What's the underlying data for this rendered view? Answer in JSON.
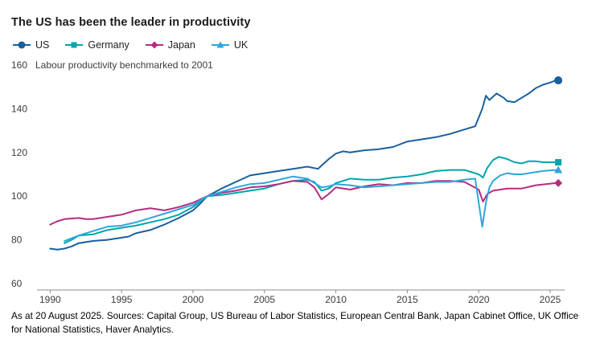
{
  "footer": {
    "note": "As at 20 August 2025. Sources: Capital Group, US Bureau of Labor Statistics, European Central Bank, Japan Cabinet Office, UK Office for National Statistics, Haver Analytics."
  },
  "chart_data": {
    "type": "line",
    "title": "The US has been the leader in productivity",
    "subtitle": "Labour productivity benchmarked to 2001",
    "legend_position": "top",
    "grid": false,
    "axis_color": "#8c8c8c",
    "tick_text_color": "#3c3c3c",
    "x_axis": {
      "min": 1989.7,
      "max": 2025.9,
      "ticks": [
        1990,
        1995,
        2000,
        2005,
        2010,
        2015,
        2020,
        2025
      ]
    },
    "y_axis": {
      "min": 60,
      "max": 160,
      "ticks": [
        60,
        80,
        100,
        120,
        140,
        160
      ]
    },
    "series": [
      {
        "name": "US",
        "color": "#1a5f9e",
        "marker": "circle",
        "points": [
          [
            1990,
            76
          ],
          [
            1990.5,
            75.5
          ],
          [
            1991,
            76
          ],
          [
            1991.5,
            77
          ],
          [
            1992,
            78.5
          ],
          [
            1993,
            79.5
          ],
          [
            1994,
            80
          ],
          [
            1995,
            81
          ],
          [
            1995.5,
            81.5
          ],
          [
            1996,
            83
          ],
          [
            1997,
            84.5
          ],
          [
            1998,
            87
          ],
          [
            1999,
            90
          ],
          [
            2000,
            93.5
          ],
          [
            2000.5,
            96.5
          ],
          [
            2001,
            100
          ],
          [
            2002,
            103.5
          ],
          [
            2003,
            106.5
          ],
          [
            2004,
            109.5
          ],
          [
            2005,
            110.5
          ],
          [
            2006,
            111.5
          ],
          [
            2007,
            112.5
          ],
          [
            2008,
            113.5
          ],
          [
            2008.75,
            112.5
          ],
          [
            2009,
            114
          ],
          [
            2009.5,
            117
          ],
          [
            2010,
            119.5
          ],
          [
            2010.5,
            120.5
          ],
          [
            2011,
            120
          ],
          [
            2012,
            121
          ],
          [
            2013,
            121.5
          ],
          [
            2014,
            122.5
          ],
          [
            2015,
            125
          ],
          [
            2016,
            126
          ],
          [
            2017,
            127
          ],
          [
            2018,
            128.5
          ],
          [
            2019,
            130.5
          ],
          [
            2019.75,
            132
          ],
          [
            2020.25,
            140
          ],
          [
            2020.5,
            146
          ],
          [
            2020.75,
            144
          ],
          [
            2021,
            145.5
          ],
          [
            2021.25,
            147
          ],
          [
            2021.75,
            145
          ],
          [
            2022,
            143.5
          ],
          [
            2022.5,
            143
          ],
          [
            2023,
            145
          ],
          [
            2023.5,
            147
          ],
          [
            2024,
            149.5
          ],
          [
            2024.5,
            151
          ],
          [
            2025,
            152
          ],
          [
            2025.4,
            153
          ]
        ]
      },
      {
        "name": "Germany",
        "color": "#00a5ad",
        "marker": "square",
        "points": [
          [
            1991,
            78.5
          ],
          [
            1991.5,
            80
          ],
          [
            1992,
            82
          ],
          [
            1993,
            82.5
          ],
          [
            1994,
            84.5
          ],
          [
            1995,
            85.5
          ],
          [
            1996,
            86.5
          ],
          [
            1997,
            88
          ],
          [
            1998,
            89.5
          ],
          [
            1999,
            91.5
          ],
          [
            2000,
            95
          ],
          [
            2001,
            100
          ],
          [
            2002,
            100.5
          ],
          [
            2003,
            101.5
          ],
          [
            2004,
            102.5
          ],
          [
            2005,
            103.5
          ],
          [
            2006,
            105.5
          ],
          [
            2007,
            107
          ],
          [
            2008,
            107.5
          ],
          [
            2008.5,
            106.5
          ],
          [
            2009,
            102.5
          ],
          [
            2009.5,
            103.5
          ],
          [
            2010,
            106
          ],
          [
            2011,
            108
          ],
          [
            2012,
            107.5
          ],
          [
            2013,
            107.5
          ],
          [
            2014,
            108.5
          ],
          [
            2015,
            109
          ],
          [
            2016,
            110
          ],
          [
            2017,
            111.5
          ],
          [
            2018,
            112
          ],
          [
            2019,
            112
          ],
          [
            2020,
            110
          ],
          [
            2020.3,
            108.5
          ],
          [
            2020.6,
            113
          ],
          [
            2021,
            116.5
          ],
          [
            2021.4,
            118
          ],
          [
            2022,
            117
          ],
          [
            2022.5,
            115.5
          ],
          [
            2023,
            115
          ],
          [
            2023.5,
            116
          ],
          [
            2024,
            116
          ],
          [
            2024.5,
            115.5
          ],
          [
            2025.4,
            115.5
          ]
        ]
      },
      {
        "name": "Japan",
        "color": "#b62c7f",
        "marker": "diamond",
        "points": [
          [
            1990,
            87
          ],
          [
            1990.5,
            88.5
          ],
          [
            1991,
            89.5
          ],
          [
            1992,
            90
          ],
          [
            1992.5,
            89.5
          ],
          [
            1993,
            89.5
          ],
          [
            1994,
            90.5
          ],
          [
            1995,
            91.5
          ],
          [
            1996,
            93.5
          ],
          [
            1997,
            94.5
          ],
          [
            1997.5,
            94
          ],
          [
            1998,
            93.5
          ],
          [
            1999,
            95
          ],
          [
            2000,
            97
          ],
          [
            2001,
            100
          ],
          [
            2002,
            101.5
          ],
          [
            2003,
            102.5
          ],
          [
            2004,
            104
          ],
          [
            2005,
            104.5
          ],
          [
            2006,
            105.5
          ],
          [
            2007,
            107
          ],
          [
            2008,
            106.5
          ],
          [
            2008.5,
            104
          ],
          [
            2009,
            98.5
          ],
          [
            2009.5,
            101
          ],
          [
            2010,
            104
          ],
          [
            2011,
            103
          ],
          [
            2012,
            104.5
          ],
          [
            2013,
            105.5
          ],
          [
            2014,
            105
          ],
          [
            2015,
            106
          ],
          [
            2016,
            106
          ],
          [
            2017,
            107
          ],
          [
            2018,
            107
          ],
          [
            2019,
            106.5
          ],
          [
            2020,
            103
          ],
          [
            2020.3,
            97.5
          ],
          [
            2020.6,
            101
          ],
          [
            2021,
            102.5
          ],
          [
            2022,
            103.5
          ],
          [
            2023,
            103.5
          ],
          [
            2024,
            105
          ],
          [
            2025.4,
            106
          ]
        ]
      },
      {
        "name": "UK",
        "color": "#2ea6dd",
        "marker": "triangle",
        "points": [
          [
            1991,
            79.5
          ],
          [
            1992,
            82
          ],
          [
            1993,
            84
          ],
          [
            1994,
            86
          ],
          [
            1995,
            86.5
          ],
          [
            1996,
            88
          ],
          [
            1997,
            90
          ],
          [
            1998,
            92
          ],
          [
            1999,
            94
          ],
          [
            2000,
            96
          ],
          [
            2001,
            100
          ],
          [
            2002,
            102
          ],
          [
            2003,
            104
          ],
          [
            2004,
            105.5
          ],
          [
            2005,
            106
          ],
          [
            2006,
            107.5
          ],
          [
            2007,
            109
          ],
          [
            2008,
            108
          ],
          [
            2009,
            104
          ],
          [
            2009.5,
            104.5
          ],
          [
            2010,
            105.5
          ],
          [
            2011,
            105
          ],
          [
            2012,
            104
          ],
          [
            2013,
            104.5
          ],
          [
            2014,
            105
          ],
          [
            2015,
            105.5
          ],
          [
            2016,
            106
          ],
          [
            2017,
            106.5
          ],
          [
            2018,
            106.5
          ],
          [
            2019,
            107.5
          ],
          [
            2019.75,
            108
          ],
          [
            2020.25,
            86
          ],
          [
            2020.5,
            97
          ],
          [
            2020.75,
            104
          ],
          [
            2021,
            107
          ],
          [
            2021.5,
            109.5
          ],
          [
            2022,
            110.5
          ],
          [
            2022.5,
            110
          ],
          [
            2023,
            110
          ],
          [
            2023.5,
            110.5
          ],
          [
            2024,
            111
          ],
          [
            2024.5,
            111.5
          ],
          [
            2025.4,
            112
          ]
        ]
      }
    ]
  }
}
